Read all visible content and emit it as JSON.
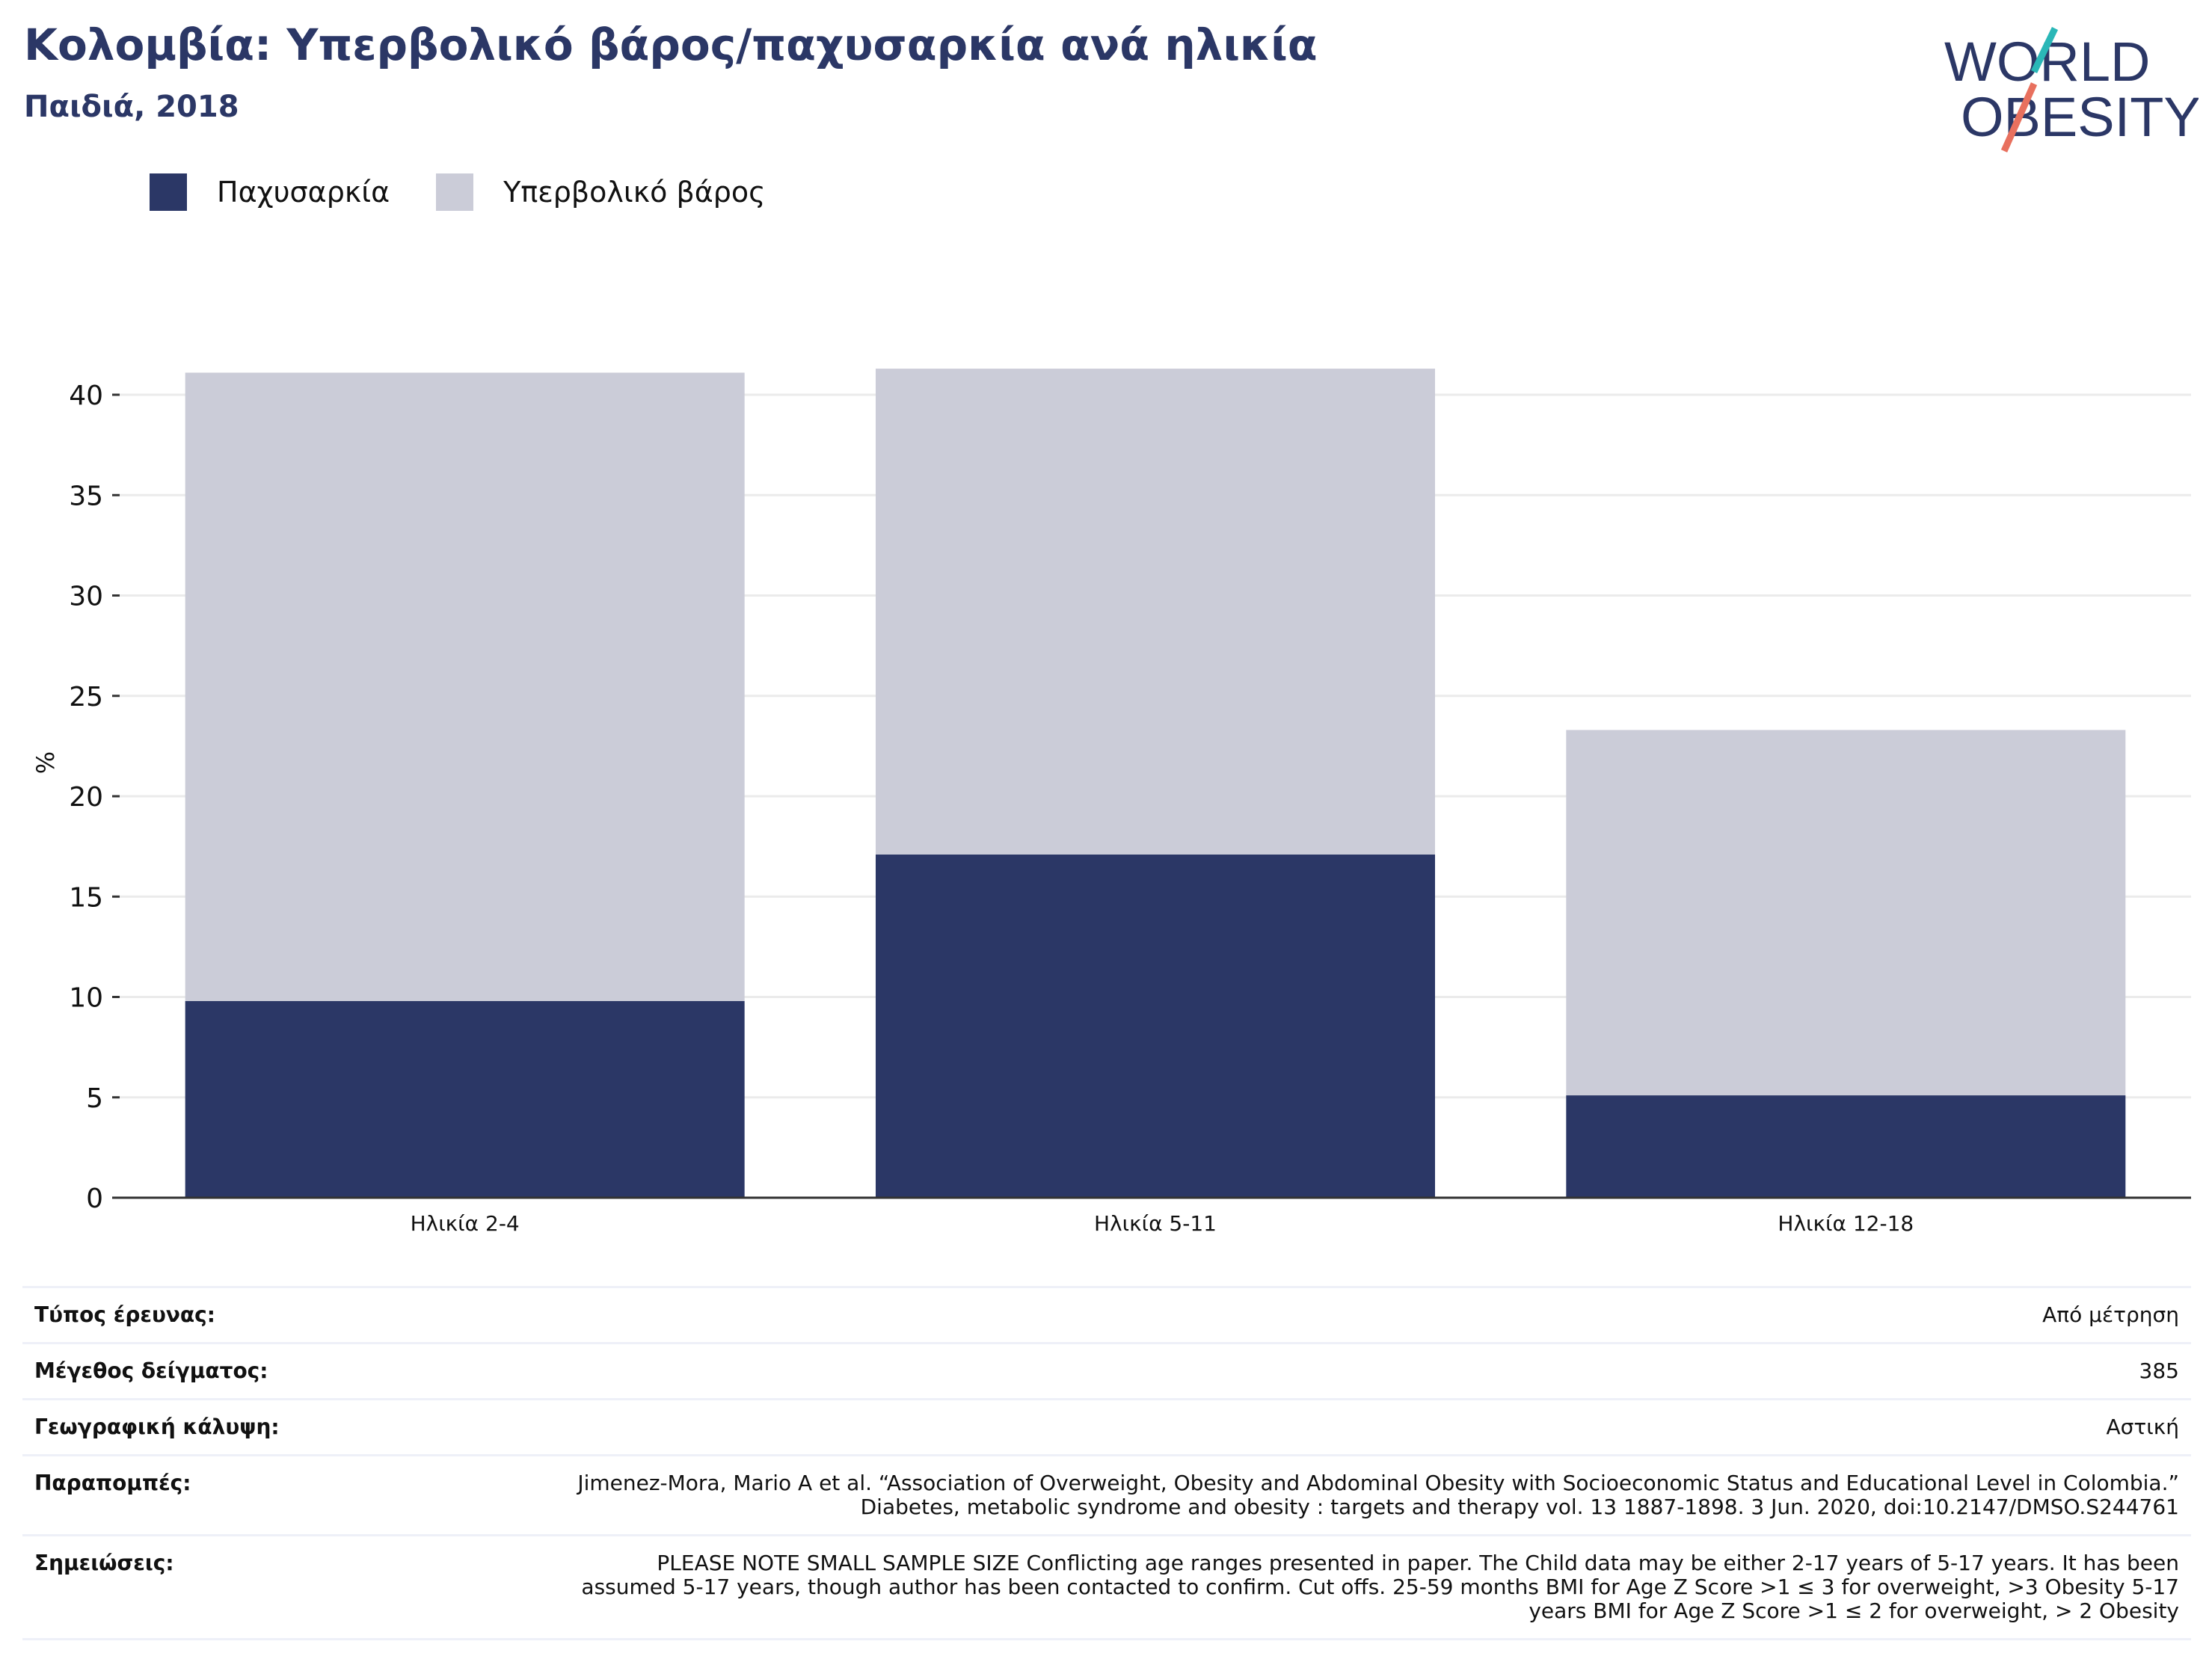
{
  "header": {
    "title": "Κολομβία: Υπερβολικό βάρος/παχυσαρκία ανά ηλικία",
    "subtitle": "Παιδιά, 2018"
  },
  "logo": {
    "line1": "WORLD",
    "line2": "OBESITY"
  },
  "colors": {
    "obesity": "#2b3766",
    "overweight": "#cbccd8",
    "title": "#2b3766",
    "logo_teal": "#2ab7b7",
    "logo_coral": "#e8705e"
  },
  "chart_data": {
    "type": "bar",
    "stacked": true,
    "categories": [
      "Ηλικία 2-4",
      "Ηλικία 5-11",
      "Ηλικία 12-18"
    ],
    "series": [
      {
        "name": "Παχυσαρκία",
        "values": [
          9.8,
          17.1,
          5.1
        ]
      },
      {
        "name": "Υπερβολικό βάρος",
        "values": [
          31.3,
          24.2,
          18.2
        ]
      }
    ],
    "ylabel": "%",
    "ylim": [
      0,
      45
    ],
    "yticks": [
      0,
      5,
      10,
      15,
      20,
      25,
      30,
      35,
      40
    ],
    "grid": true,
    "legend": "top-left"
  },
  "info": [
    {
      "label": "Τύπος έρευνας:",
      "value": "Από μέτρηση"
    },
    {
      "label": "Μέγεθος δείγματος:",
      "value": "385"
    },
    {
      "label": "Γεωγραφική κάλυψη:",
      "value": "Αστική"
    },
    {
      "label": "Παραπομπές:",
      "value": "Jimenez-Mora, Mario A et al. “Association of Overweight, Obesity and Abdominal Obesity with Socioeconomic Status and Educational Level in Colombia.” Diabetes, metabolic syndrome and obesity : targets and therapy vol. 13 1887-1898. 3 Jun. 2020, doi:10.2147/DMSO.S244761"
    },
    {
      "label": "Σημειώσεις:",
      "value": "PLEASE NOTE SMALL SAMPLE SIZE Conflicting age ranges presented in paper. The Child data may be either 2-17 years of 5-17 years. It has been assumed 5-17 years, though author has been contacted to confirm. Cut offs. 25-59 months BMI for Age Z Score >1 ≤ 3 for overweight, >3 Obesity 5-17 years BMI for Age Z Score >1 ≤ 2 for overweight, > 2 Obesity"
    }
  ]
}
